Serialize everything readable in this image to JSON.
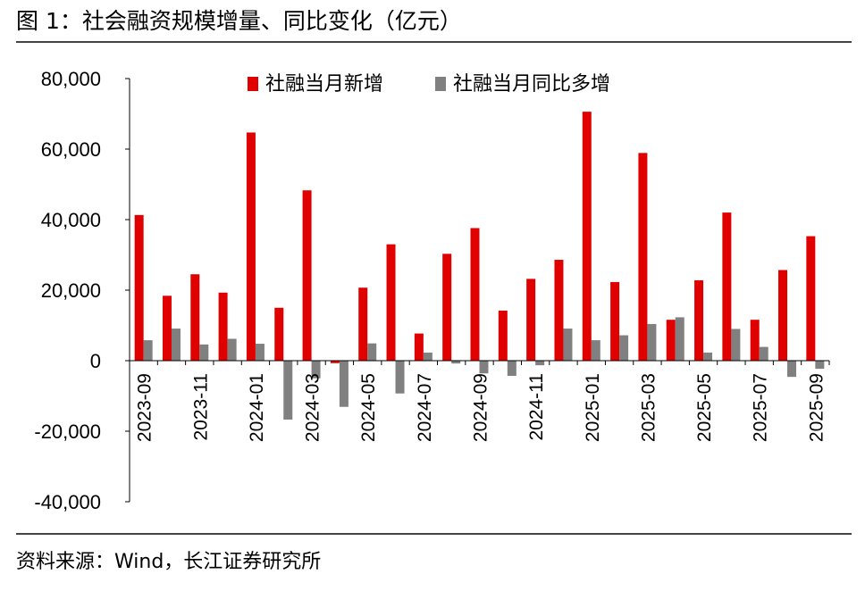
{
  "title": "图 1：社会融资规模增量、同比变化（亿元）",
  "source": "资料来源：Wind，长江证券研究所",
  "colors": {
    "series1": "#e00000",
    "series2": "#808080",
    "axis": "#000000",
    "rule": "#444444"
  },
  "chart_data": {
    "type": "bar",
    "title": "社会融资规模增量、同比变化（亿元）",
    "xlabel": "",
    "ylabel": "",
    "ylim": [
      -40000,
      80000
    ],
    "yticks": [
      -40000,
      -20000,
      0,
      20000,
      40000,
      60000,
      80000
    ],
    "ytick_labels": [
      "-40,000",
      "-20,000",
      "0",
      "20,000",
      "40,000",
      "60,000",
      "80,000"
    ],
    "legend_position": "top-center",
    "grid": false,
    "categories": [
      "2023-09",
      "2023-10",
      "2023-11",
      "2023-12",
      "2024-01",
      "2024-02",
      "2024-03",
      "2024-04",
      "2024-05",
      "2024-06",
      "2024-07",
      "2024-08",
      "2024-09",
      "2024-10",
      "2024-11",
      "2024-12",
      "2025-01",
      "2025-02",
      "2025-03",
      "2025-04",
      "2025-05",
      "2025-06",
      "2025-07",
      "2025-08",
      "2025-09"
    ],
    "x_tick_labels": [
      "2023-09",
      "2023-11",
      "2024-01",
      "2024-03",
      "2024-05",
      "2024-07",
      "2024-09",
      "2024-11",
      "2025-01",
      "2025-03",
      "2025-05",
      "2025-07",
      "2025-09"
    ],
    "series": [
      {
        "name": "社融当月新增",
        "values": [
          41300,
          18400,
          24500,
          19300,
          64700,
          15000,
          48300,
          -700,
          20700,
          33000,
          7700,
          30300,
          37600,
          14200,
          23200,
          28600,
          70600,
          22300,
          58900,
          11600,
          22800,
          42000,
          11600,
          25700,
          35300
        ]
      },
      {
        "name": "社融当月同比多增",
        "values": [
          5800,
          9100,
          4600,
          6200,
          4800,
          -16700,
          -5000,
          -13100,
          4900,
          -9300,
          2300,
          -800,
          -3600,
          -4300,
          -1300,
          9100,
          5800,
          7200,
          10400,
          12300,
          2300,
          9000,
          3900,
          -4600,
          -2300
        ]
      }
    ]
  }
}
